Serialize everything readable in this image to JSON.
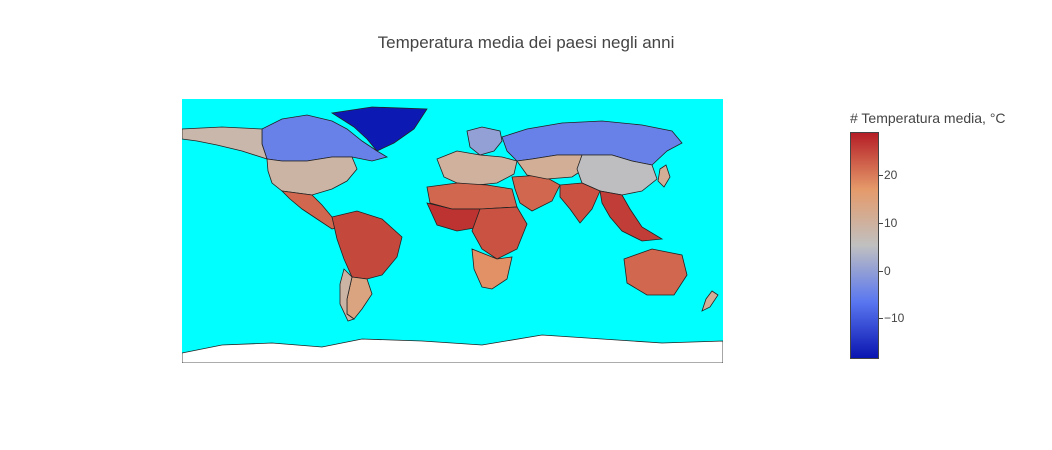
{
  "title": "Temperatura media dei paesi negli anni",
  "colorbar": {
    "title": "# Temperatura media, °C",
    "ticks": [
      "20",
      "10",
      "0",
      "−10"
    ],
    "tick_values": [
      20,
      10,
      0,
      -10
    ],
    "range": [
      -18.5,
      29
    ],
    "colorscale": [
      "#0a15b0",
      "#5a77f0",
      "#c0c0c0",
      "#e59a6a",
      "#b51e26"
    ]
  },
  "map": {
    "ocean_color": "#00ffff",
    "land_border_color": "#222222",
    "projection": "equirectangular",
    "regions": [
      {
        "name": "Greenland",
        "temp": -18
      },
      {
        "name": "Canada",
        "temp": -5
      },
      {
        "name": "Russia",
        "temp": -5
      },
      {
        "name": "Alaska",
        "temp": 8
      },
      {
        "name": "USA",
        "temp": 9
      },
      {
        "name": "Mexico / Central America",
        "temp": 22
      },
      {
        "name": "South America (north)",
        "temp": 25
      },
      {
        "name": "Argentina",
        "temp": 14
      },
      {
        "name": "Chile",
        "temp": 9
      },
      {
        "name": "Scandinavia",
        "temp": 0
      },
      {
        "name": "Europe",
        "temp": 10
      },
      {
        "name": "North Africa",
        "temp": 22
      },
      {
        "name": "West Africa",
        "temp": 27
      },
      {
        "name": "Central / East Africa",
        "temp": 24
      },
      {
        "name": "Southern Africa",
        "temp": 18
      },
      {
        "name": "Middle East",
        "temp": 22
      },
      {
        "name": "Central Asia",
        "temp": 11
      },
      {
        "name": "China / Mongolia",
        "temp": 5
      },
      {
        "name": "India",
        "temp": 24
      },
      {
        "name": "Southeast Asia",
        "temp": 26
      },
      {
        "name": "Japan",
        "temp": 11
      },
      {
        "name": "Australia",
        "temp": 22
      },
      {
        "name": "New Zealand",
        "temp": 11
      },
      {
        "name": "Antarctica",
        "temp": null
      }
    ]
  }
}
